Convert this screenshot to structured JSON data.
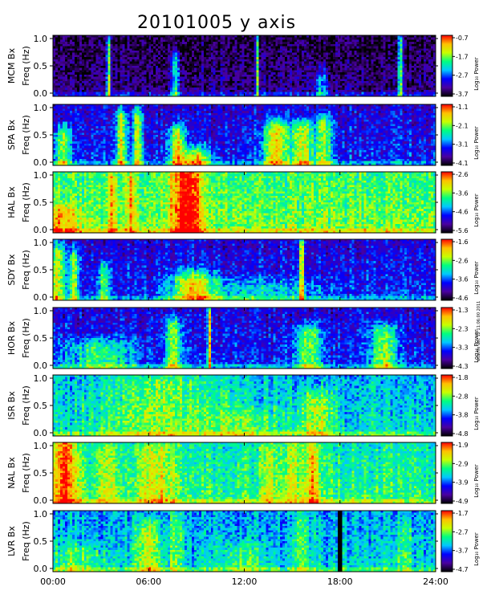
{
  "title": "20101005 y axis",
  "side_note": "wth.file dec 12 11:06:00 2011",
  "chart_data": {
    "type": "heatmap",
    "title": "20101005 y axis",
    "xlabel": "",
    "x_ticks": [
      "00:00",
      "06:00",
      "12:00",
      "18:00",
      "24:00"
    ],
    "xlim_hours": [
      0,
      24
    ],
    "freq_ticks": [
      "1.0",
      "0.5",
      "0.0"
    ],
    "ylim": [
      0,
      1.0
    ],
    "colorbar_label": "Log₁₀ Power",
    "colormap": [
      "#000000",
      "#4a00a0",
      "#0000ff",
      "#00c8ff",
      "#00ff80",
      "#c8ff00",
      "#ffc000",
      "#ff0000"
    ],
    "panels": [
      {
        "station": "MCM",
        "ylabel_top": "MCM Bx",
        "ylabel_bottom": "Freq (Hz)",
        "cbar_ticks": [
          "-0.7",
          "-1.7",
          "-2.7",
          "-3.7"
        ],
        "base": 0.05,
        "bursts": [
          [
            3.5,
            0.15,
            0.9,
            0.6
          ],
          [
            7.7,
            0.3,
            0.6,
            0.4
          ],
          [
            12.8,
            0.1,
            0.9,
            0.6
          ],
          [
            16.8,
            0.5,
            0.3,
            0.3
          ],
          [
            21.8,
            0.2,
            0.9,
            0.5
          ]
        ]
      },
      {
        "station": "SPA",
        "ylabel_top": "SPA Bx",
        "ylabel_bottom": "Freq (Hz)",
        "cbar_ticks": [
          "-1.1",
          "-2.1",
          "-3.1",
          "-4.1"
        ],
        "base": 0.22,
        "bursts": [
          [
            0.6,
            0.6,
            0.5,
            0.4
          ],
          [
            4.3,
            0.4,
            0.8,
            0.5
          ],
          [
            5.3,
            0.3,
            0.8,
            0.5
          ],
          [
            7.8,
            0.6,
            0.5,
            0.5
          ],
          [
            9.0,
            1.0,
            0.15,
            0.55
          ],
          [
            14.0,
            1.0,
            0.6,
            0.5
          ],
          [
            15.7,
            0.8,
            0.6,
            0.45
          ],
          [
            17.0,
            0.6,
            0.7,
            0.4
          ]
        ]
      },
      {
        "station": "HAL",
        "ylabel_top": "HAL Bx",
        "ylabel_bottom": "Freq (Hz)",
        "cbar_ticks": [
          "-2.6",
          "-3.6",
          "-4.6",
          "-5.6"
        ],
        "base": 0.58,
        "bursts": [
          [
            0.4,
            1.5,
            0.3,
            0.25
          ],
          [
            3.7,
            0.3,
            0.9,
            0.25
          ],
          [
            4.9,
            0.3,
            0.9,
            0.25
          ],
          [
            8.4,
            1.3,
            1.0,
            0.42
          ]
        ]
      },
      {
        "station": "SDY",
        "ylabel_top": "SDY Bx",
        "ylabel_bottom": "Freq (Hz)",
        "cbar_ticks": [
          "-1.6",
          "-2.6",
          "-3.6",
          "-4.6"
        ],
        "base": 0.22,
        "bursts": [
          [
            0.3,
            0.6,
            0.8,
            0.45
          ],
          [
            1.3,
            0.4,
            0.7,
            0.4
          ],
          [
            3.2,
            0.4,
            0.5,
            0.35
          ],
          [
            8.8,
            1.6,
            0.35,
            0.45
          ],
          [
            12.5,
            5.0,
            0.2,
            0.2
          ],
          [
            15.6,
            0.15,
            0.9,
            0.6
          ]
        ]
      },
      {
        "station": "HOR",
        "ylabel_top": "HOR Bx",
        "ylabel_bottom": "Freq (Hz)",
        "cbar_ticks": [
          "-1.3",
          "-2.3",
          "-3.3",
          "-4.3"
        ],
        "base": 0.22,
        "bursts": [
          [
            3.0,
            2.5,
            0.35,
            0.3
          ],
          [
            7.6,
            0.6,
            0.7,
            0.4
          ],
          [
            9.8,
            0.12,
            0.9,
            0.6
          ],
          [
            16.0,
            1.0,
            0.6,
            0.4
          ],
          [
            20.8,
            1.0,
            0.6,
            0.4
          ]
        ]
      },
      {
        "station": "ISR",
        "ylabel_top": "ISR Bx",
        "ylabel_bottom": "Freq (Hz)",
        "cbar_ticks": [
          "-1.8",
          "-2.8",
          "-3.8",
          "-4.8"
        ],
        "base": 0.42,
        "bursts": [
          [
            7.0,
            5.0,
            0.9,
            0.18
          ],
          [
            16.5,
            1.2,
            0.6,
            0.25
          ],
          [
            12.0,
            3.0,
            0.3,
            0.12
          ]
        ]
      },
      {
        "station": "NAL",
        "ylabel_top": "NAL Bx",
        "ylabel_bottom": "Freq (Hz)",
        "cbar_ticks": [
          "-1.9",
          "-2.9",
          "-3.9",
          "-4.9"
        ],
        "base": 0.5,
        "bursts": [
          [
            0.8,
            1.0,
            1.0,
            0.42
          ],
          [
            3.5,
            0.8,
            0.9,
            0.2
          ],
          [
            6.5,
            1.5,
            0.9,
            0.22
          ],
          [
            13.5,
            0.6,
            0.9,
            0.2
          ],
          [
            16.3,
            0.6,
            0.9,
            0.32
          ],
          [
            15.0,
            0.8,
            0.9,
            0.2
          ]
        ]
      },
      {
        "station": "LVR",
        "ylabel_top": "LVR Bx",
        "ylabel_bottom": "Freq (Hz)",
        "cbar_ticks": [
          "-1.7",
          "-2.7",
          "-3.7",
          "-4.7"
        ],
        "base": 0.4,
        "bursts": [
          [
            1.5,
            2.0,
            0.3,
            0.15
          ],
          [
            6.0,
            1.0,
            0.7,
            0.25
          ],
          [
            7.7,
            0.5,
            0.9,
            0.2
          ],
          [
            15.6,
            0.6,
            0.9,
            0.2
          ],
          [
            12.0,
            1.5,
            0.3,
            0.15
          ],
          [
            22.0,
            0.6,
            0.7,
            0.15
          ]
        ],
        "gap": [
          17.8,
          18.1
        ]
      }
    ]
  }
}
